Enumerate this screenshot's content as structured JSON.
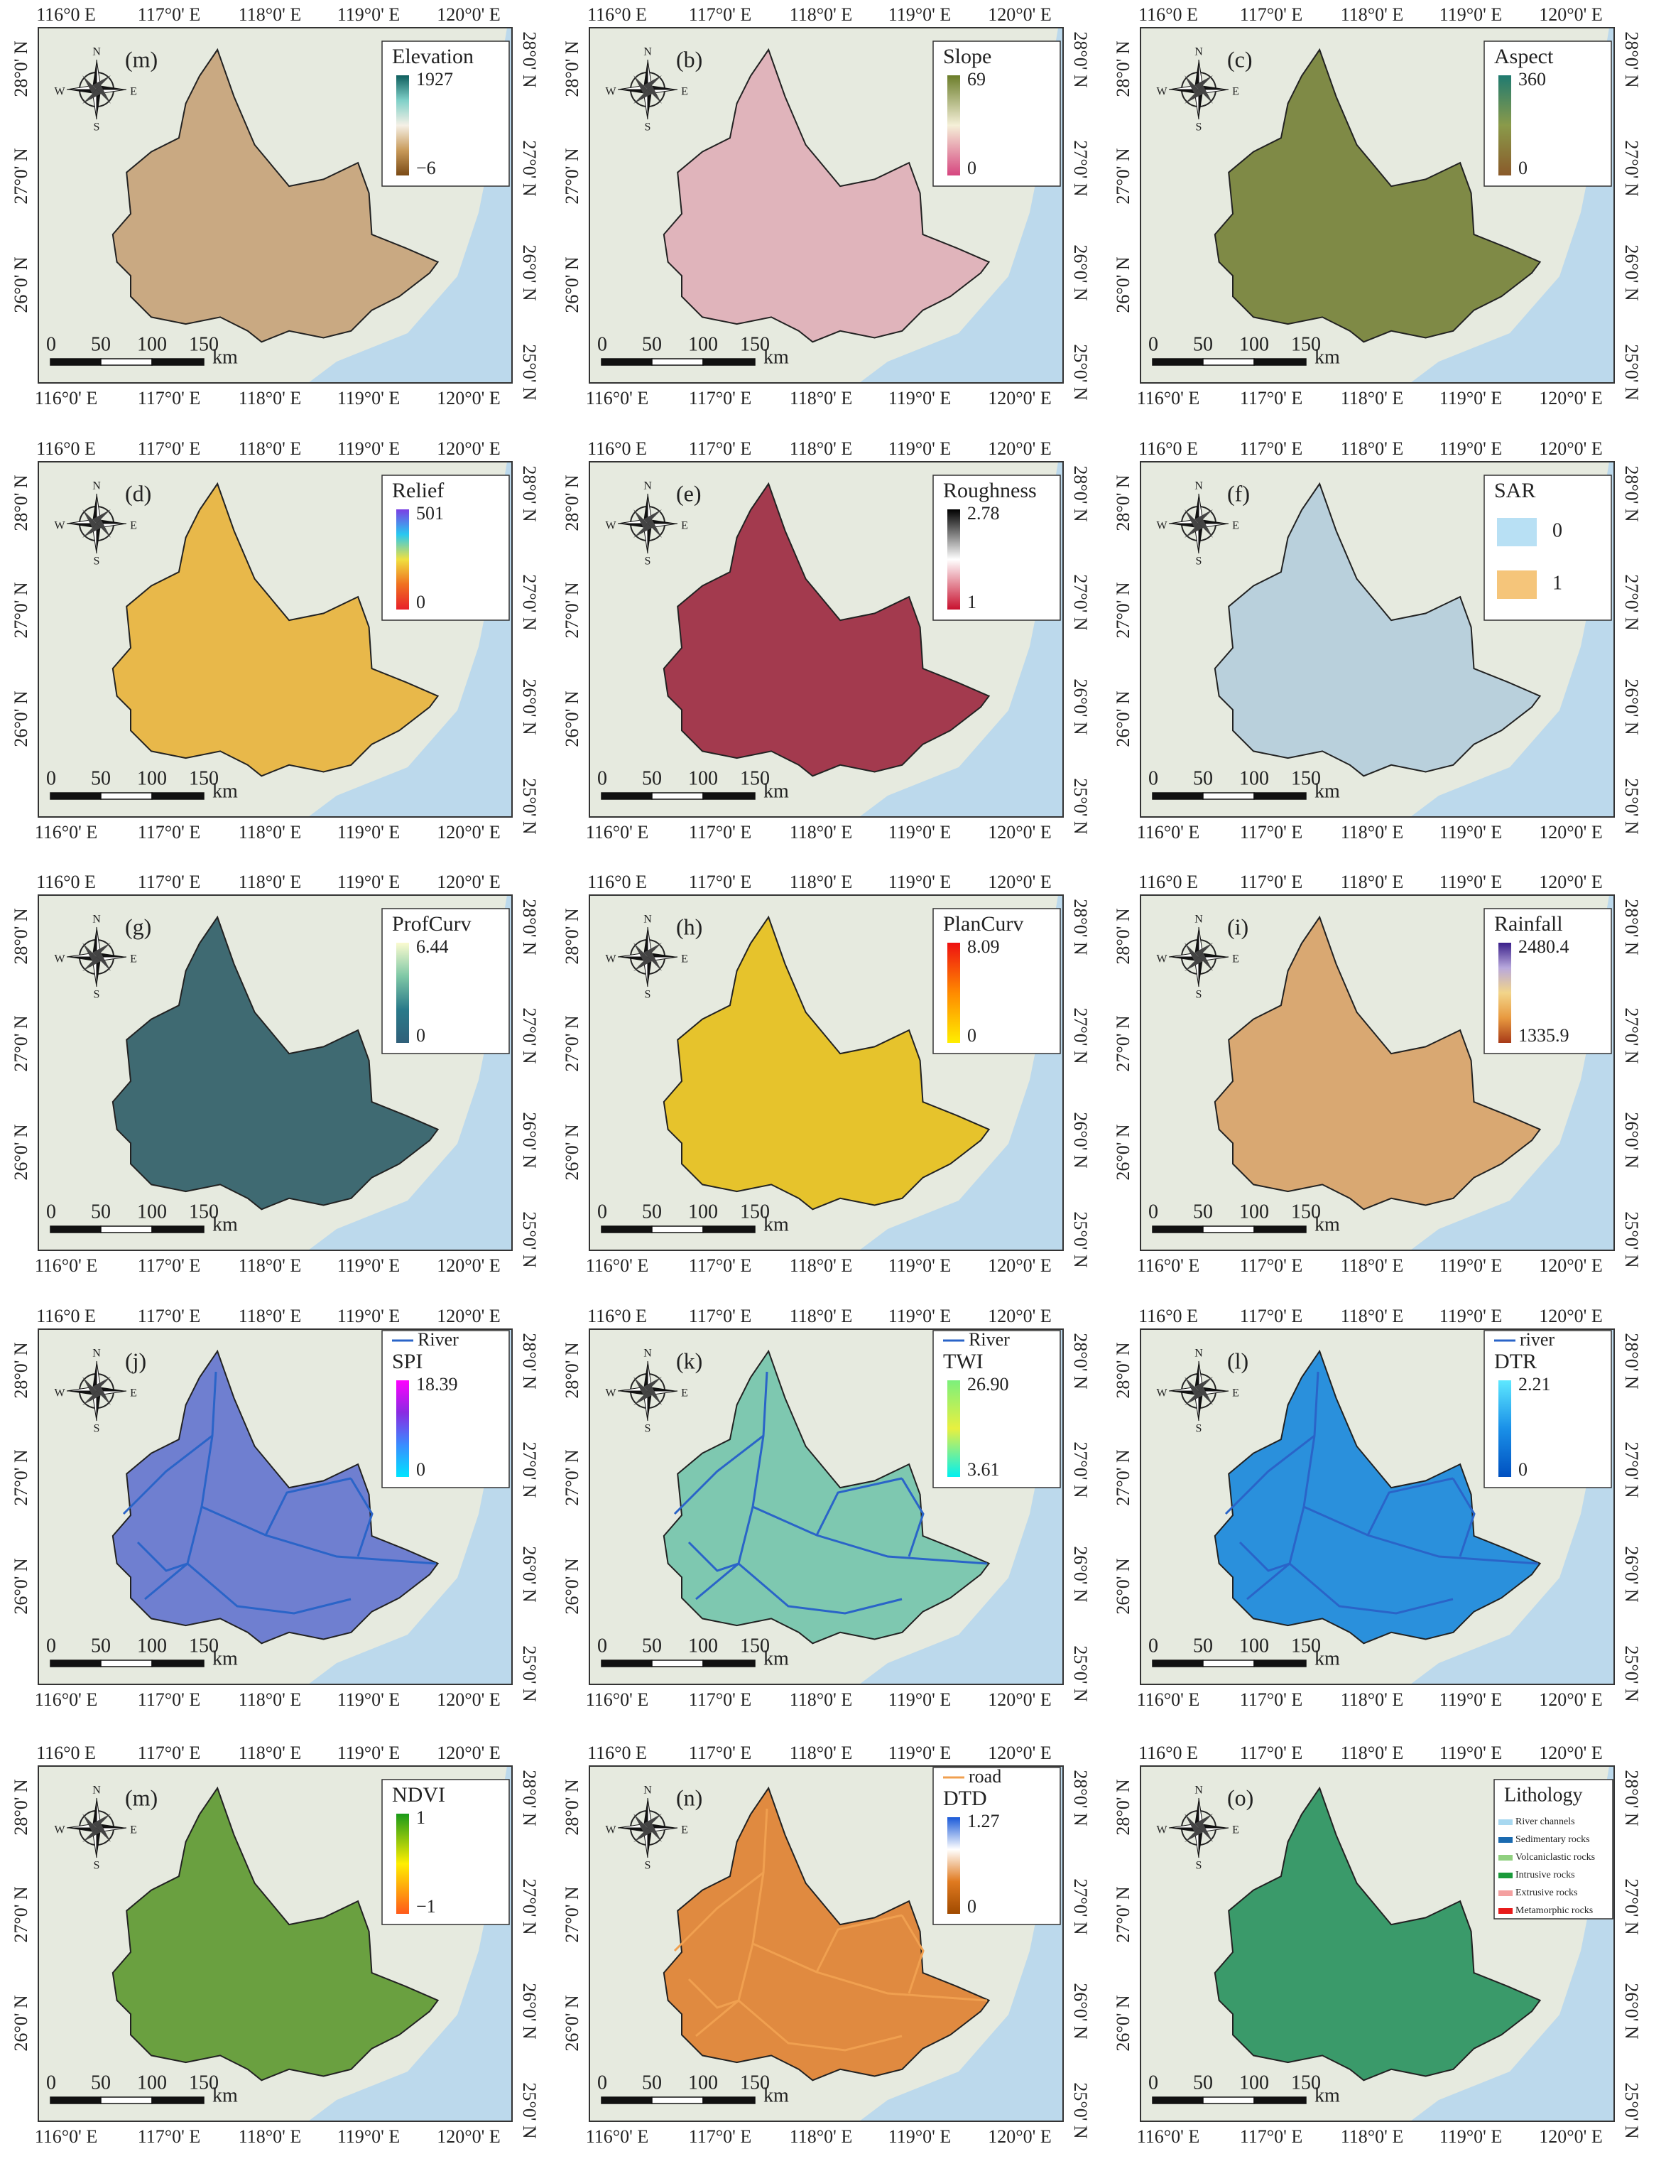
{
  "axes": {
    "lon_top": [
      "116°0 E",
      "117°0' E",
      "118°0' E",
      "119°0' E",
      "120°0' E"
    ],
    "lon_bottom": [
      "116°0' E",
      "117°0' E",
      "118°0' E",
      "119°0' E",
      "120°0' E"
    ],
    "lat_left": [
      "28°0' N",
      "27°0' N",
      "26°0' N"
    ],
    "lat_right": [
      "28°0' N",
      "27°0' N",
      "26°0' N",
      "25°0' N"
    ]
  },
  "compass": {
    "n": "N",
    "s": "S",
    "w": "W",
    "e": "E"
  },
  "scale_bar": {
    "ticks": [
      "0",
      "50",
      "100",
      "150"
    ],
    "unit": "km"
  },
  "panels": [
    {
      "label": "(m)",
      "fill": "#c9a982",
      "legend": {
        "title": "Elevation",
        "max": "1927",
        "min": "−6",
        "ramp": [
          "#0e5e5e",
          "#7fd0c8",
          "#f5f0e6",
          "#c89a5a",
          "#7a4a15"
        ]
      }
    },
    {
      "label": "(b)",
      "fill": "#e0b4bb",
      "legend": {
        "title": "Slope",
        "max": "69",
        "min": "0",
        "ramp": [
          "#6b7d2a",
          "#f5f0d8",
          "#d6457f"
        ]
      }
    },
    {
      "label": "(c)",
      "fill": "#7f8a46",
      "legend": {
        "title": "Aspect",
        "max": "360",
        "min": "0",
        "ramp": [
          "#1f7a70",
          "#8a9a4a",
          "#8a5a2a"
        ]
      }
    },
    {
      "label": "(d)",
      "fill": "#e8b84a",
      "legend": {
        "title": "Relief",
        "max": "501",
        "min": "0",
        "ramp": [
          "#7b3fe4",
          "#28c8f0",
          "#f0e040",
          "#f07020",
          "#e8202a"
        ]
      }
    },
    {
      "label": "(e)",
      "fill": "#a33a4e",
      "legend": {
        "title": "Roughness",
        "max": "2.78",
        "min": "1",
        "ramp": [
          "#000000",
          "#ffffff",
          "#c8102e"
        ]
      }
    },
    {
      "label": "(f)",
      "fill": "#b9d0dc",
      "legend": {
        "title": "SAR",
        "classes": [
          {
            "name": "0",
            "color": "#b8e0f4"
          },
          {
            "name": "1",
            "color": "#f5c57a"
          }
        ]
      }
    },
    {
      "label": "(g)",
      "fill": "#3f6a72",
      "legend": {
        "title": "ProfCurv",
        "max": "6.44",
        "min": "0",
        "ramp": [
          "#fbfbd0",
          "#7fc8a6",
          "#2a7a8a",
          "#30607a"
        ]
      }
    },
    {
      "label": "(h)",
      "fill": "#e6c32c",
      "legend": {
        "title": "PlanCurv",
        "max": "8.09",
        "min": "0",
        "ramp": [
          "#ee1111",
          "#ff8a00",
          "#ffee00"
        ]
      }
    },
    {
      "label": "(i)",
      "fill": "#d9a872",
      "legend": {
        "title": "Rainfall",
        "max": "2480.4",
        "min": "1335.9",
        "ramp": [
          "#3a1f8a",
          "#b8a8dc",
          "#f2d58a",
          "#e89a40",
          "#a83a18"
        ]
      }
    },
    {
      "label": "(j)",
      "fill": "#6f7fd0",
      "line": {
        "name": "River",
        "color": "#2a64c8"
      },
      "legend": {
        "title": "SPI",
        "max": "18.39",
        "min": "0",
        "ramp": [
          "#ff00ff",
          "#8a2be2",
          "#3a8cff",
          "#00e5ff"
        ]
      }
    },
    {
      "label": "(k)",
      "fill": "#7ec8b0",
      "line": {
        "name": "River",
        "color": "#2a64c8"
      },
      "legend": {
        "title": "TWI",
        "max": "26.90",
        "min": "3.61",
        "ramp": [
          "#7cf07c",
          "#e8f040",
          "#00f0f0"
        ]
      }
    },
    {
      "label": "(l)",
      "fill": "#2a90dc",
      "line": {
        "name": "river",
        "color": "#2a64c8"
      },
      "legend": {
        "title": "DTR",
        "max": "2.21",
        "min": "0",
        "ramp": [
          "#5ee8ff",
          "#1a90e8",
          "#0050c0"
        ]
      }
    },
    {
      "label": "(m)",
      "fill": "#6aa040",
      "legend": {
        "title": "NDVI",
        "max": "1",
        "min": "−1",
        "ramp": [
          "#1a9a1a",
          "#ffee00",
          "#ff5a1a"
        ]
      }
    },
    {
      "label": "(n)",
      "fill": "#e08a40",
      "line": {
        "name": "road",
        "color": "#f0a050"
      },
      "legend": {
        "title": "DTD",
        "max": "1.27",
        "min": "0",
        "ramp": [
          "#1a5ad8",
          "#ffffff",
          "#e07a20",
          "#a04a00"
        ]
      }
    },
    {
      "label": "(o)",
      "fill": "#3a9a6a",
      "legend": {
        "title": "Lithology",
        "classes": [
          {
            "name": "River channels",
            "color": "#a8d8f0"
          },
          {
            "name": "Sedimentary rocks",
            "color": "#1a6ab0"
          },
          {
            "name": "Volcaniclastic rocks",
            "color": "#90d080"
          },
          {
            "name": "Intrusive rocks",
            "color": "#1a9a3a"
          },
          {
            "name": "Extrusive rocks",
            "color": "#f4a0a0"
          },
          {
            "name": "Metamorphic rocks",
            "color": "#e81a1a"
          }
        ]
      }
    }
  ]
}
